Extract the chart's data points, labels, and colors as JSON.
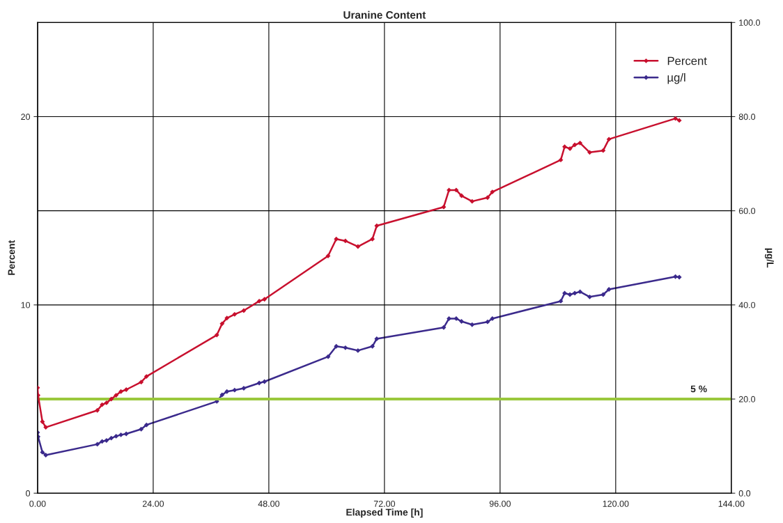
{
  "chart_data": {
    "type": "line",
    "title": "Uranine Content",
    "xlabel": "Elapsed Time [h]",
    "ylabel": "Percent",
    "y2label": "µg/L",
    "x": [
      0,
      0.1,
      1.0,
      1.7,
      12.4,
      13.4,
      14.3,
      15.3,
      16.3,
      17.3,
      18.4,
      21.5,
      22.6,
      37.2,
      38.3,
      39.3,
      40.9,
      42.8,
      46.0,
      47.1,
      60.3,
      62.0,
      63.9,
      66.5,
      69.5,
      70.4,
      84.3,
      85.4,
      86.9,
      88.0,
      90.2,
      93.4,
      94.4,
      108.6,
      109.4,
      110.5,
      111.5,
      112.6,
      114.6,
      117.4,
      118.6,
      132.4,
      133.2
    ],
    "series": [
      {
        "name": "Percent",
        "color": "#c8102e",
        "values": [
          5.6,
          5.2,
          3.8,
          3.5,
          4.4,
          4.7,
          4.8,
          5.0,
          5.2,
          5.4,
          5.5,
          5.9,
          6.2,
          8.4,
          9.0,
          9.3,
          9.5,
          9.7,
          10.2,
          10.3,
          12.6,
          13.5,
          13.4,
          13.1,
          13.5,
          14.2,
          15.2,
          16.1,
          16.1,
          15.8,
          15.5,
          15.7,
          16.0,
          17.7,
          18.4,
          18.3,
          18.5,
          18.6,
          18.1,
          18.2,
          18.8,
          19.9,
          19.8
        ]
      },
      {
        "name": "µg/l",
        "color": "#3b2a8c",
        "axis": "y2",
        "values": [
          12.9,
          12.0,
          8.7,
          8.1,
          10.4,
          11.0,
          11.2,
          11.7,
          12.1,
          12.4,
          12.6,
          13.6,
          14.5,
          19.5,
          20.9,
          21.6,
          21.9,
          22.3,
          23.4,
          23.7,
          29.0,
          31.2,
          30.9,
          30.3,
          31.2,
          32.8,
          35.2,
          37.1,
          37.1,
          36.5,
          35.8,
          36.4,
          37.1,
          40.8,
          42.5,
          42.2,
          42.5,
          42.8,
          41.7,
          42.2,
          43.3,
          46.0,
          45.9
        ]
      }
    ],
    "xlim": [
      0,
      144
    ],
    "xticks": [
      {
        "value": 0,
        "label": "0.00"
      },
      {
        "value": 24,
        "label": "24.00"
      },
      {
        "value": 48,
        "label": "48.00"
      },
      {
        "value": 72,
        "label": "72.00"
      },
      {
        "value": 96,
        "label": "96.00"
      },
      {
        "value": 120,
        "label": "120.00"
      },
      {
        "value": 144,
        "label": "144.00"
      }
    ],
    "ylim": [
      0,
      25
    ],
    "yticks": [
      0,
      10,
      20
    ],
    "y2lim": [
      0,
      100
    ],
    "y2ticks": [
      {
        "value": 0,
        "label": "0.0"
      },
      {
        "value": 20,
        "label": "20.0"
      },
      {
        "value": 40,
        "label": "40.0"
      },
      {
        "value": 60,
        "label": "60.0"
      },
      {
        "value": 80,
        "label": "80.0"
      },
      {
        "value": 100,
        "label": "100.0"
      }
    ],
    "ref_lines": [
      {
        "axis": "y",
        "value": 5,
        "label": "5 %",
        "color": "#9ac83c"
      }
    ],
    "grid": true,
    "legend": "top right",
    "marker": "diamond",
    "line_style": "solid"
  }
}
